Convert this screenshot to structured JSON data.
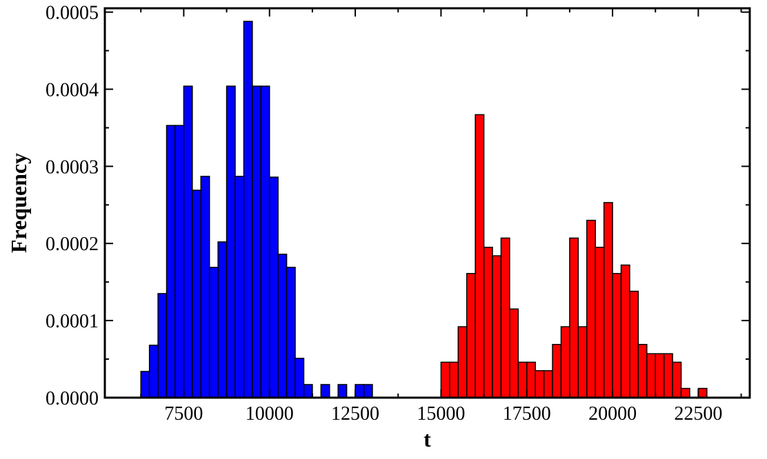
{
  "chart_data": {
    "type": "bar",
    "xlabel": "t",
    "ylabel": "Frequency",
    "xlim": [
      5200,
      24000
    ],
    "ylim": [
      0,
      0.000505
    ],
    "bin_width": 250,
    "x_ticks": [
      7500,
      10000,
      12500,
      15000,
      17500,
      20000,
      22500
    ],
    "x_tick_labels": [
      "7500",
      "10000",
      "12500",
      "15000",
      "17500",
      "20000",
      "22500"
    ],
    "x_minor_ticks": [
      6250,
      8750,
      11250,
      13750,
      16250,
      18750,
      21250,
      23750
    ],
    "y_ticks": [
      0,
      0.0001,
      0.0002,
      0.0003,
      0.0004,
      0.0005
    ],
    "y_tick_labels": [
      "0.0000",
      "0.0001",
      "0.0002",
      "0.0003",
      "0.0004",
      "0.0005"
    ],
    "y_minor_ticks": [
      5e-05,
      0.00015,
      0.00025,
      0.00035,
      0.00045
    ],
    "grid": false,
    "series": [
      {
        "color": "#0000ff",
        "bins": [
          [
            6375,
            3.4e-05
          ],
          [
            6625,
            6.8e-05
          ],
          [
            6875,
            0.000135
          ],
          [
            7125,
            0.000353
          ],
          [
            7375,
            0.000353
          ],
          [
            7625,
            0.000404
          ],
          [
            7875,
            0.000269
          ],
          [
            8125,
            0.000287
          ],
          [
            8375,
            0.000169
          ],
          [
            8625,
            0.000202
          ],
          [
            8875,
            0.000404
          ],
          [
            9125,
            0.000287
          ],
          [
            9375,
            0.000488
          ],
          [
            9625,
            0.000404
          ],
          [
            9875,
            0.000404
          ],
          [
            10125,
            0.000286
          ],
          [
            10375,
            0.000186
          ],
          [
            10625,
            0.000169
          ],
          [
            10875,
            5.1e-05
          ],
          [
            11125,
            1.7e-05
          ],
          [
            11625,
            1.7e-05
          ],
          [
            12125,
            1.7e-05
          ],
          [
            12625,
            1.7e-05
          ],
          [
            12875,
            1.7e-05
          ]
        ]
      },
      {
        "color": "#ff0000",
        "bins": [
          [
            15125,
            4.6e-05
          ],
          [
            15375,
            4.6e-05
          ],
          [
            15625,
            9.2e-05
          ],
          [
            15875,
            0.000161
          ],
          [
            16125,
            0.000367
          ],
          [
            16375,
            0.000195
          ],
          [
            16625,
            0.000184
          ],
          [
            16875,
            0.000207
          ],
          [
            17125,
            0.000115
          ],
          [
            17375,
            4.6e-05
          ],
          [
            17625,
            4.6e-05
          ],
          [
            17875,
            3.5e-05
          ],
          [
            18125,
            3.5e-05
          ],
          [
            18375,
            6.9e-05
          ],
          [
            18625,
            9.2e-05
          ],
          [
            18875,
            0.000207
          ],
          [
            19125,
            9.2e-05
          ],
          [
            19375,
            0.00023
          ],
          [
            19625,
            0.000195
          ],
          [
            19875,
            0.000253
          ],
          [
            20125,
            0.000161
          ],
          [
            20375,
            0.000172
          ],
          [
            20625,
            0.000138
          ],
          [
            20875,
            6.9e-05
          ],
          [
            21125,
            5.7e-05
          ],
          [
            21375,
            5.7e-05
          ],
          [
            21625,
            5.7e-05
          ],
          [
            21875,
            4.6e-05
          ],
          [
            22125,
            1.2e-05
          ],
          [
            22625,
            1.2e-05
          ]
        ]
      }
    ]
  }
}
